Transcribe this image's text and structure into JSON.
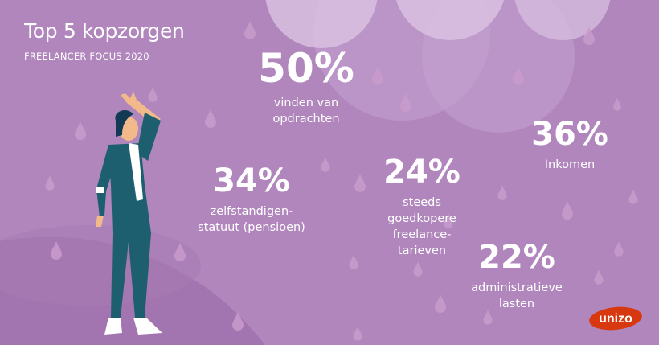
{
  "header": {
    "title": "Top 5 kopzorgen",
    "subtitle": "FREELANCER FOCUS 2020"
  },
  "stats": [
    {
      "percent": "50%",
      "label_lines": [
        "vinden van",
        "opdrachten"
      ]
    },
    {
      "percent": "34%",
      "label_lines": [
        "zelfstandigen-",
        "statuut (pensioen)"
      ]
    },
    {
      "percent": "24%",
      "label_lines": [
        "steeds",
        "goedkopere",
        "freelance-",
        "tarieven"
      ]
    },
    {
      "percent": "36%",
      "label_lines": [
        "Inkomen"
      ]
    },
    {
      "percent": "22%",
      "label_lines": [
        "administratieve",
        "lasten"
      ]
    }
  ],
  "logo": {
    "text": "unizo"
  },
  "colors": {
    "background": "#b086bc",
    "cloud": "#c9a7d2",
    "shadow": "#a074ae",
    "suit": "#1d5f6e",
    "logo": "#d8380f"
  }
}
